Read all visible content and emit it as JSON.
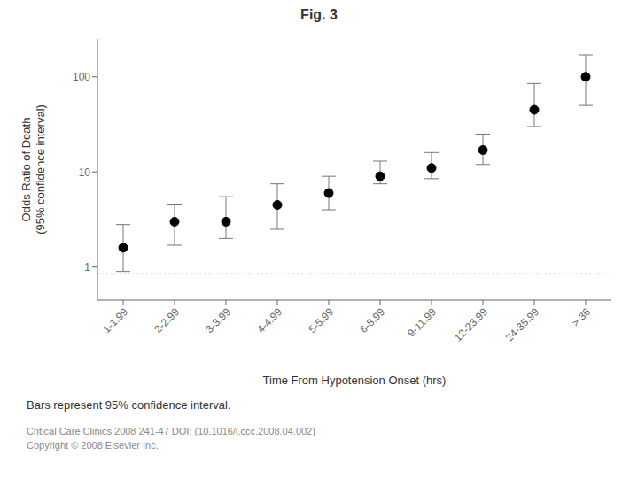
{
  "chart_data": {
    "type": "scatter",
    "title": "Fig. 3",
    "xlabel": "Time From Hypotension Onset (hrs)",
    "ylabel": "Odds Ratio of Death\n(95% confidence interval)",
    "categories": [
      "1-1.99",
      "2-2.99",
      "3-3.99",
      "4-4.99",
      "5-5.99",
      "6-8.99",
      "9-11.99",
      "12-23.99",
      "24-35.99",
      "> 36"
    ],
    "values": [
      1.6,
      3.0,
      3.0,
      4.5,
      6.0,
      9.0,
      11.0,
      17.0,
      45.0,
      100.0
    ],
    "ci_lower": [
      0.9,
      1.7,
      2.0,
      2.5,
      4.0,
      7.5,
      8.5,
      12.0,
      30.0,
      50.0
    ],
    "ci_upper": [
      2.8,
      4.5,
      5.5,
      7.5,
      9.0,
      13.0,
      16.0,
      25.0,
      85.0,
      170.0
    ],
    "color": "#000000",
    "marker": "circle",
    "log": "y",
    "ylim": [
      0.45,
      250
    ],
    "yticks": [
      1,
      10,
      100
    ],
    "grid": false,
    "hline": {
      "y": 0.85,
      "color": "#666666",
      "line_style": "dotted"
    },
    "caption": "Bars represent 95% confidence interval.",
    "footer": [
      "Critical Care Clinics 2008 241-47 DOI: (10.1016/j.ccc.2008.04.002)",
      "Copyright © 2008 Elsevier Inc."
    ]
  }
}
